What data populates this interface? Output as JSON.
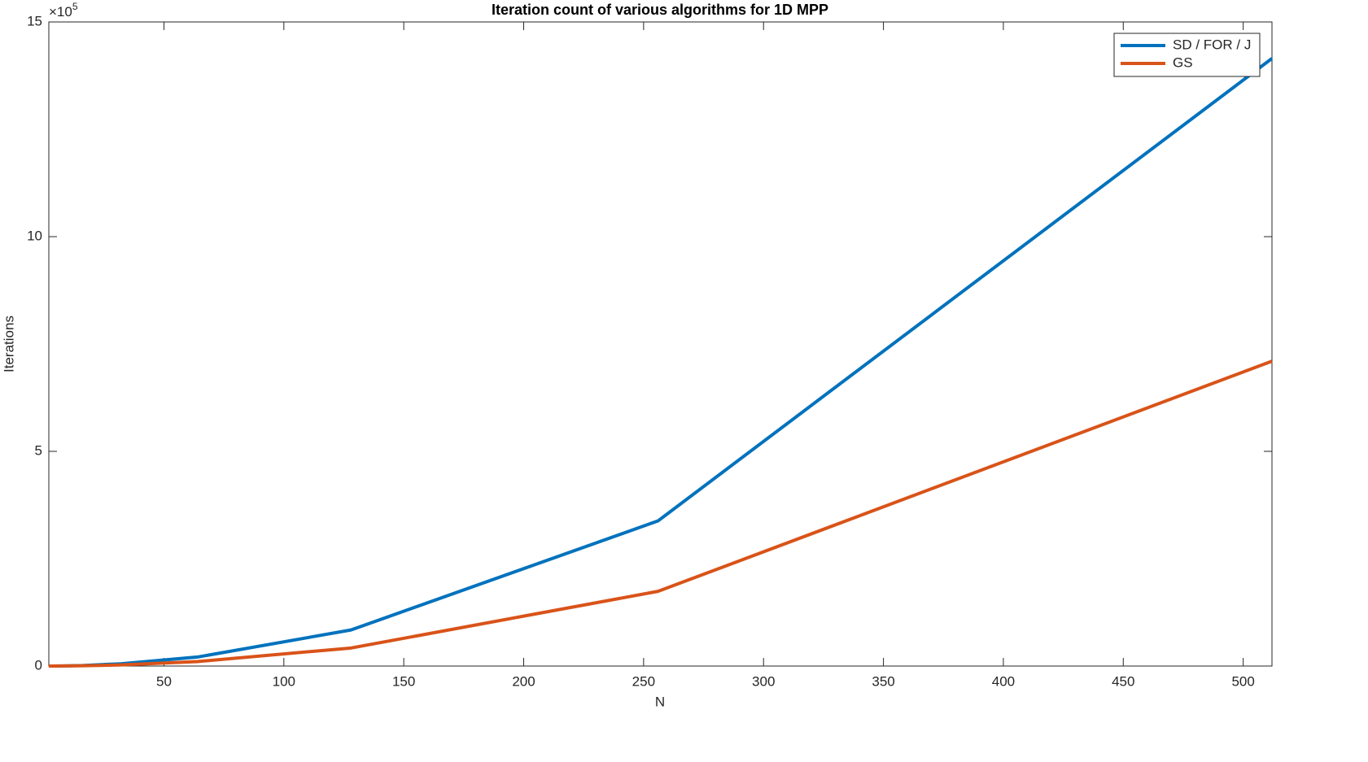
{
  "chart_data": {
    "type": "line",
    "title": "Iteration count of various algorithms for 1D MPP",
    "x_label": "N",
    "y_label": "Iterations",
    "y_multiplier": {
      "base": "×10",
      "exponent": "5"
    },
    "x": [
      2,
      4,
      8,
      16,
      32,
      64,
      128,
      256,
      512
    ],
    "series": [
      {
        "name": "SD / FOR / J",
        "color": "#0072bd",
        "values": [
          0,
          50,
          300,
          1300,
          5300,
          21000,
          84000,
          338000,
          1415000
        ]
      },
      {
        "name": "GS",
        "color": "#d95319",
        "values": [
          0,
          25,
          150,
          650,
          2600,
          10500,
          42000,
          174000,
          710000
        ]
      }
    ],
    "xlim": [
      2,
      512
    ],
    "ylim": [
      0,
      1500000
    ],
    "xticks": [
      50,
      100,
      150,
      200,
      250,
      300,
      350,
      400,
      450,
      500
    ],
    "yticks": [
      {
        "value": 0,
        "label": "0"
      },
      {
        "value": 500000,
        "label": "5"
      },
      {
        "value": 1000000,
        "label": "10"
      },
      {
        "value": 1500000,
        "label": "15"
      }
    ],
    "grid": false,
    "legend": "top-right"
  }
}
